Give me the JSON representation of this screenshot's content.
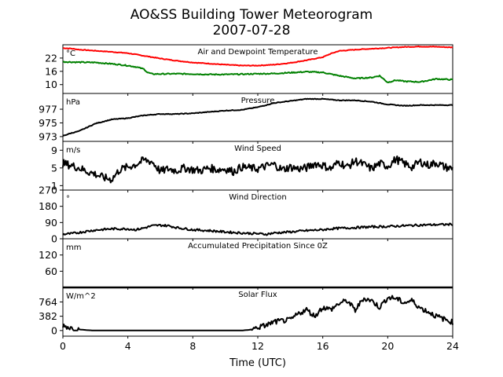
{
  "figure": {
    "title_line1": "AO&SS Building Tower Meteorogram",
    "title_line2": "2007-07-28",
    "xlabel": "Time (UTC)"
  },
  "chart_data": [
    {
      "type": "line",
      "id": "temp",
      "title": "Air and Dewpoint Temperature",
      "unit": "°C",
      "xlim": [
        0,
        24
      ],
      "xticks": [
        "0",
        "4",
        "8",
        "12",
        "16",
        "20",
        "24"
      ],
      "ylim": [
        6,
        28
      ],
      "yticks": [
        10,
        16,
        22
      ],
      "series": [
        {
          "color": "#ff0000",
          "x": [
            0,
            0.5,
            1,
            2,
            3,
            4,
            5,
            6,
            7,
            8,
            9,
            10,
            11,
            12,
            13,
            14,
            15,
            16,
            16.5,
            17,
            18,
            19,
            20,
            21,
            22,
            23,
            24
          ],
          "y": [
            26.5,
            26.3,
            25.8,
            25.3,
            24.8,
            24.2,
            23.0,
            21.8,
            20.8,
            20.0,
            19.5,
            19.0,
            18.6,
            18.6,
            19.0,
            19.8,
            21.0,
            22.4,
            24.0,
            25.2,
            25.8,
            26.2,
            26.6,
            27.0,
            27.2,
            27.1,
            26.8
          ]
        },
        {
          "color": "#008000",
          "x": [
            0,
            0.5,
            1,
            2,
            3,
            4,
            4.5,
            5,
            5.2,
            5.5,
            6,
            7,
            8,
            9,
            10,
            11,
            12,
            13,
            14,
            15,
            16,
            17,
            18,
            19,
            19.5,
            20,
            20.5,
            21,
            22,
            23,
            24
          ],
          "y": [
            20.3,
            20.2,
            20.1,
            20.0,
            19.4,
            18.6,
            18.0,
            17.0,
            15.5,
            14.8,
            14.8,
            14.9,
            14.8,
            14.6,
            14.6,
            14.7,
            14.9,
            15.0,
            15.4,
            15.8,
            15.5,
            14.0,
            12.8,
            13.2,
            14.0,
            11.0,
            12.0,
            11.5,
            11.2,
            12.6,
            12.2
          ]
        }
      ]
    },
    {
      "type": "line",
      "id": "pressure",
      "title": "Pressure",
      "unit": "hPa",
      "xlim": [
        0,
        24
      ],
      "ylim": [
        972.3,
        979.3
      ],
      "yticks": [
        973,
        975,
        977
      ],
      "series": [
        {
          "color": "#000000",
          "x": [
            0,
            0.5,
            1,
            2,
            3,
            4,
            5,
            6,
            7,
            8,
            9,
            10,
            11,
            12,
            13,
            14,
            15,
            16,
            17,
            18,
            19,
            20,
            21,
            22,
            23,
            24
          ],
          "y": [
            973.1,
            973.5,
            973.8,
            974.9,
            975.5,
            975.7,
            976.1,
            976.3,
            976.3,
            976.4,
            976.6,
            976.8,
            976.9,
            977.3,
            977.9,
            978.2,
            978.5,
            978.5,
            978.3,
            978.3,
            978.1,
            977.7,
            977.5,
            977.6,
            977.6,
            977.6
          ]
        }
      ]
    },
    {
      "type": "line",
      "id": "wind_speed",
      "title": "Wind Speed",
      "unit": "m/s",
      "xlim": [
        0,
        24
      ],
      "ylim": [
        0,
        11
      ],
      "yticks": [
        1,
        5,
        9
      ],
      "series": [
        {
          "color": "#000000",
          "x": [
            0,
            0.5,
            1,
            1.5,
            2,
            2.5,
            3,
            3.5,
            4,
            4.5,
            5,
            5.5,
            6,
            6.5,
            7,
            7.5,
            8,
            8.5,
            9,
            9.5,
            10,
            10.5,
            11,
            11.5,
            12,
            12.5,
            13,
            13.5,
            14,
            14.5,
            15,
            15.5,
            16,
            16.5,
            17,
            17.5,
            18,
            18.5,
            19,
            19.5,
            20,
            20.5,
            21,
            21.5,
            22,
            22.5,
            23,
            23.5,
            24
          ],
          "y": [
            6.0,
            5.6,
            5.0,
            4.2,
            3.6,
            2.8,
            2.4,
            4.6,
            5.2,
            5.8,
            6.8,
            6.4,
            4.2,
            4.8,
            4.4,
            5.0,
            4.6,
            4.4,
            5.0,
            4.6,
            4.8,
            4.2,
            5.2,
            5.0,
            4.8,
            5.4,
            5.8,
            4.6,
            5.2,
            4.8,
            5.0,
            6.0,
            5.6,
            4.8,
            6.4,
            5.2,
            6.6,
            5.8,
            4.8,
            6.0,
            5.4,
            7.0,
            6.0,
            5.2,
            6.4,
            5.6,
            6.2,
            5.2,
            4.8
          ]
        }
      ]
    },
    {
      "type": "line",
      "id": "wind_direction",
      "title": "Wind Direction",
      "unit": "°",
      "xlim": [
        0,
        24
      ],
      "ylim": [
        0,
        270
      ],
      "yticks": [
        0,
        90,
        180,
        270
      ],
      "series": [
        {
          "color": "#000000",
          "x": [
            0,
            0.5,
            1,
            1.5,
            2,
            3,
            4,
            4.5,
            5,
            5.5,
            6,
            6.5,
            7,
            8,
            9,
            10,
            11,
            12,
            12.5,
            13,
            14,
            15,
            16,
            16.5,
            17,
            18,
            19,
            20,
            21,
            22,
            23,
            24
          ],
          "y": [
            25,
            28,
            35,
            42,
            48,
            55,
            55,
            50,
            60,
            72,
            75,
            72,
            62,
            50,
            45,
            38,
            32,
            28,
            25,
            32,
            38,
            45,
            50,
            55,
            58,
            62,
            66,
            68,
            72,
            76,
            78,
            80
          ]
        }
      ]
    },
    {
      "type": "line",
      "id": "precipitation",
      "title": "Accumulated Precipitation Since 0Z",
      "unit": "mm",
      "xlim": [
        0,
        24
      ],
      "ylim": [
        0,
        180
      ],
      "yticks": [
        60,
        120
      ],
      "series": [
        {
          "color": "#000000",
          "x": [
            0,
            24
          ],
          "y": [
            0,
            0
          ]
        }
      ]
    },
    {
      "type": "line",
      "id": "solar_flux",
      "title": "Solar Flux",
      "unit": "W/m^2",
      "xlim": [
        0,
        24
      ],
      "ylim": [
        -150,
        1150
      ],
      "yticks": [
        0,
        382,
        764
      ],
      "series": [
        {
          "color": "#000000",
          "x": [
            0,
            0.3,
            0.6,
            1,
            1.5,
            2,
            3,
            4,
            5,
            6,
            7,
            8,
            9,
            10,
            11,
            11.5,
            12,
            12.5,
            13,
            13.5,
            14,
            14.5,
            15,
            15.5,
            16,
            16.5,
            17,
            17.5,
            18,
            18.5,
            19,
            19.5,
            20,
            20.5,
            21,
            21.5,
            22,
            22.5,
            23,
            23.5,
            24
          ],
          "y": [
            140,
            90,
            60,
            30,
            10,
            0,
            0,
            0,
            0,
            0,
            0,
            0,
            0,
            0,
            0,
            20,
            80,
            140,
            230,
            260,
            280,
            450,
            560,
            380,
            620,
            560,
            720,
            800,
            540,
            860,
            800,
            620,
            880,
            860,
            740,
            800,
            600,
            500,
            380,
            300,
            220
          ]
        }
      ]
    }
  ]
}
